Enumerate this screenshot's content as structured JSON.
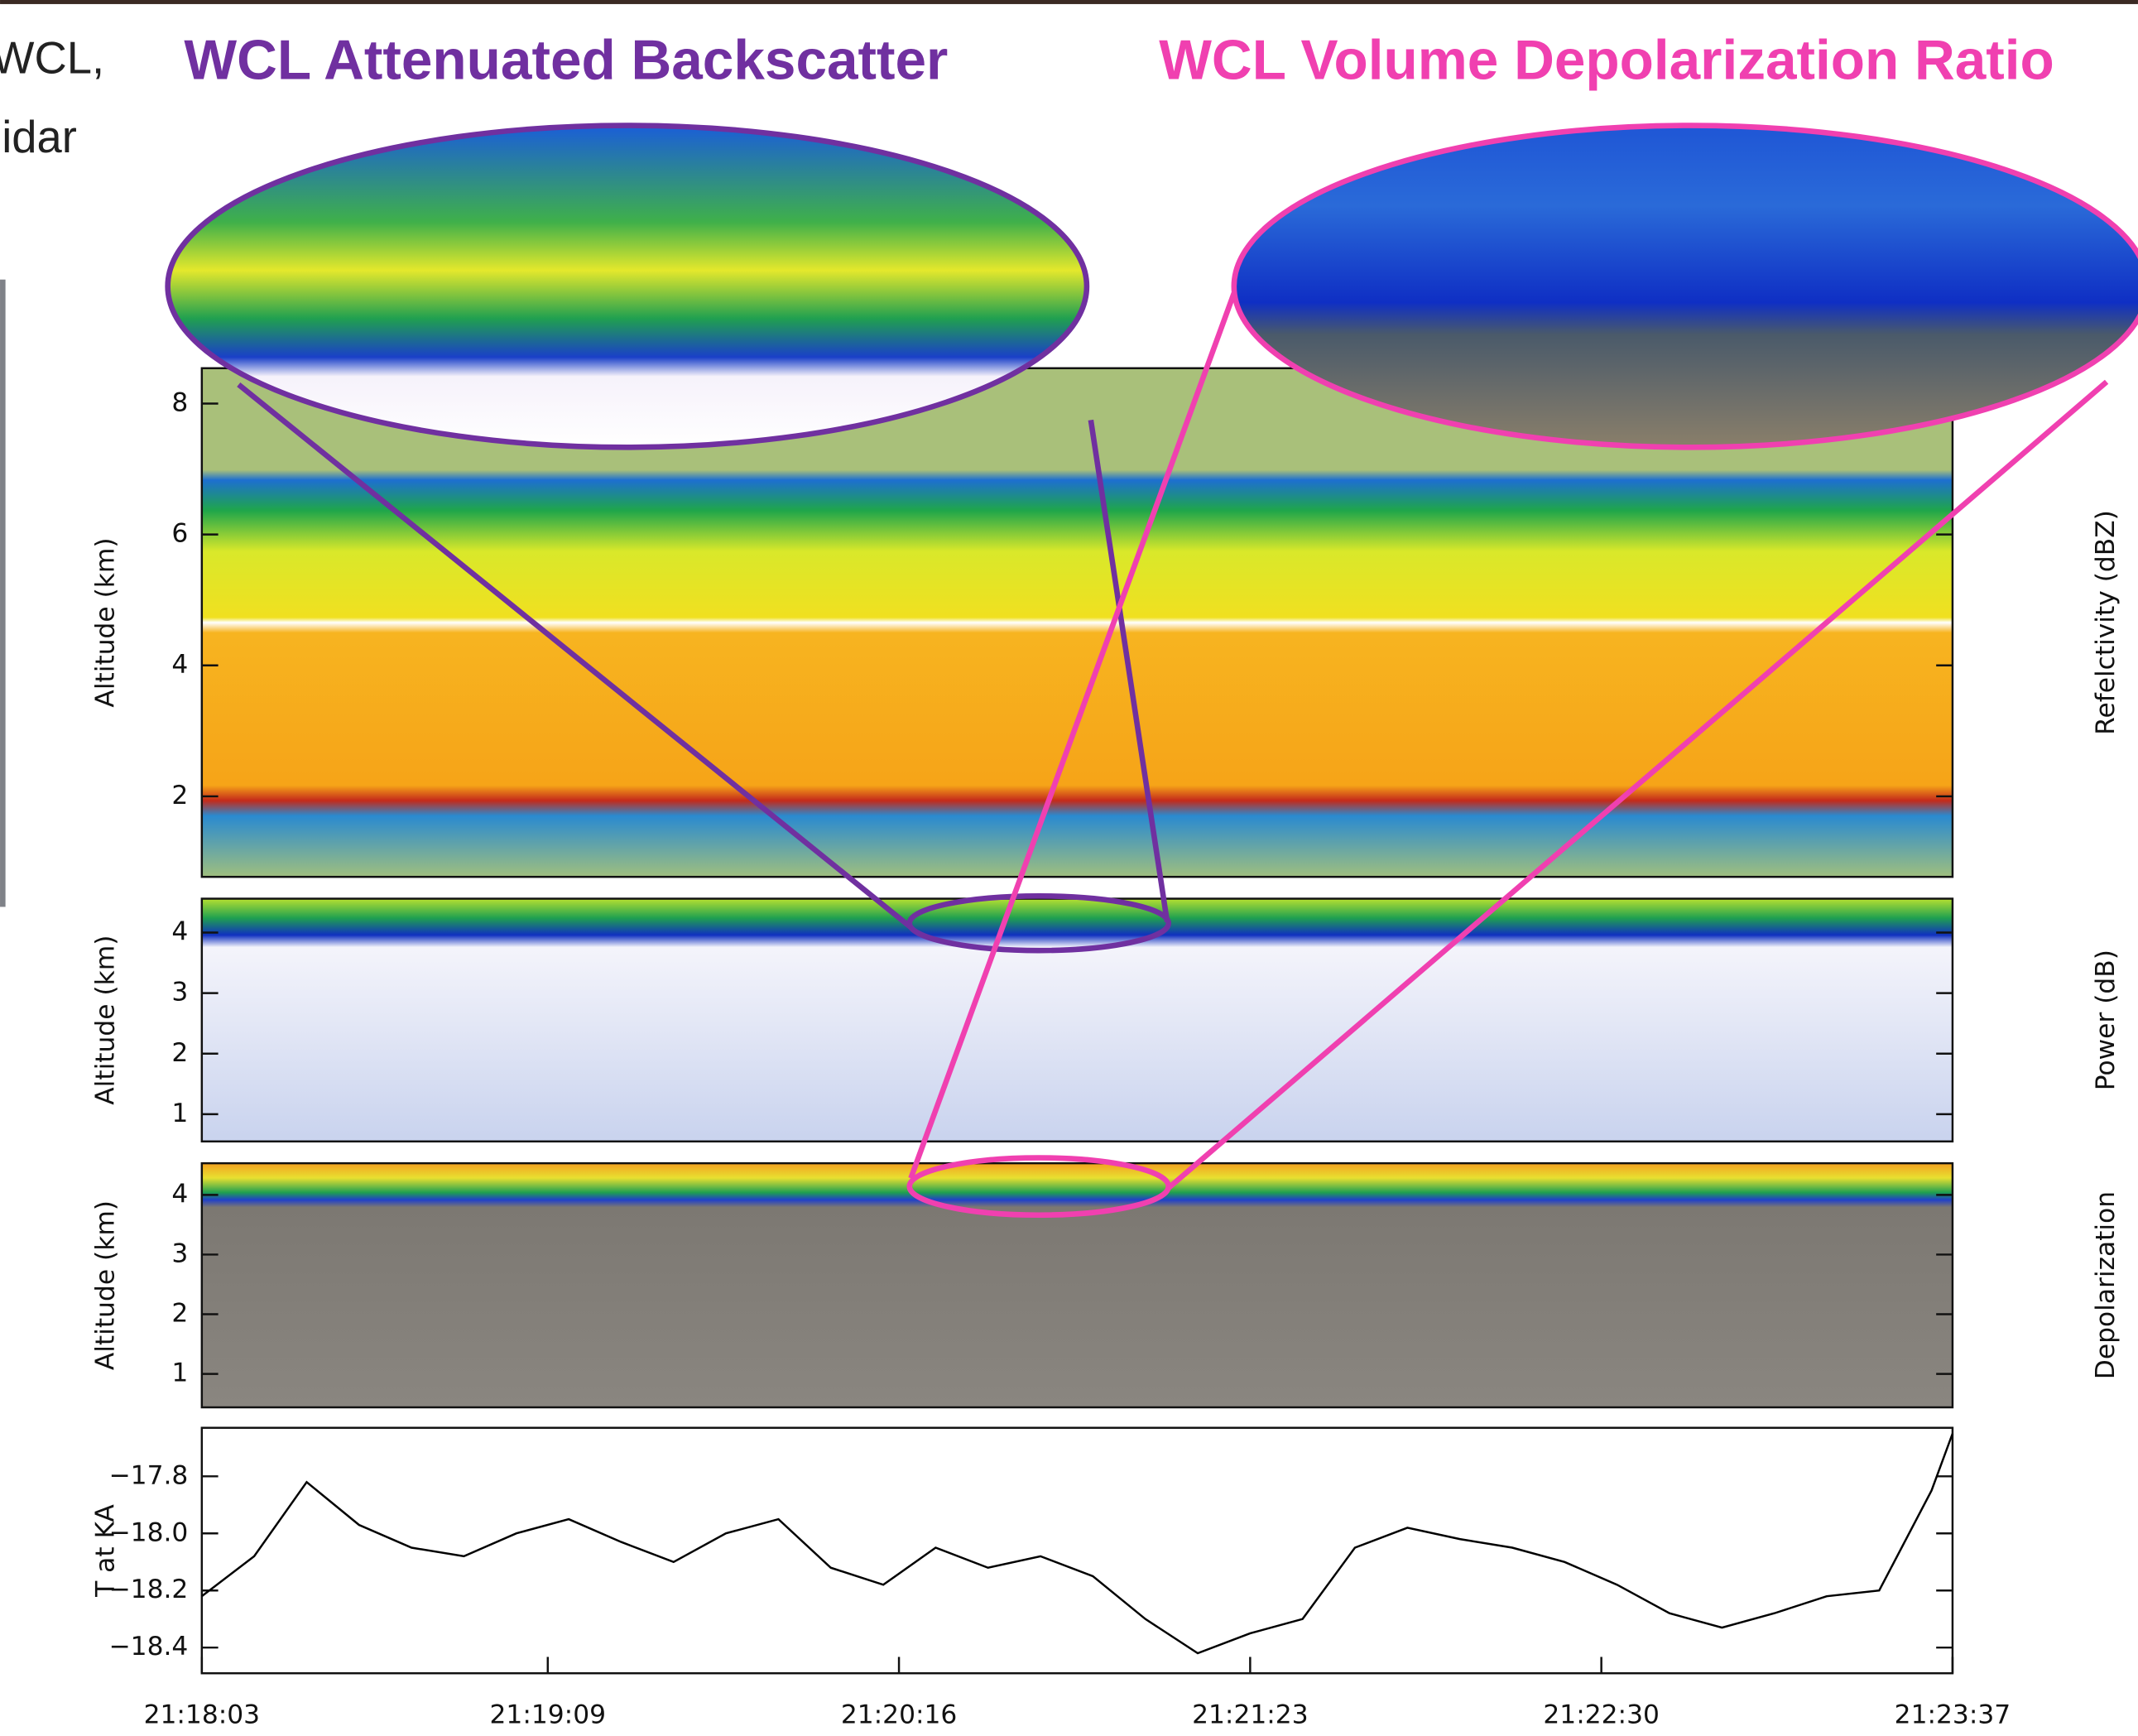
{
  "side_text": [
    "WCL,",
    "lidar"
  ],
  "callouts": [
    "WCL Attenuated Backscatter",
    "WCL Volume Depolarization Ratio"
  ],
  "chart_data": [
    {
      "type": "heatmap",
      "y_label": "Altitude (km)",
      "right_label": "Refelctivity (dBZ)",
      "ylim": [
        0.77,
        8.54
      ],
      "yticks": [
        2,
        4,
        6,
        8
      ]
    },
    {
      "type": "heatmap",
      "y_label": "Altitude (km)",
      "right_label": "Power (dB)",
      "ylim": [
        0.55,
        4.56
      ],
      "yticks": [
        1,
        2,
        3,
        4
      ]
    },
    {
      "type": "heatmap",
      "y_label": "Altitude (km)",
      "right_label": "Depolarization",
      "ylim": [
        0.44,
        4.53
      ],
      "yticks": [
        1,
        2,
        3,
        4
      ]
    },
    {
      "type": "line",
      "y_label": "T at KA",
      "color": "#000000",
      "xlim": [
        "21:18:03",
        "21:23:37"
      ],
      "xticks": [
        "21:18:03",
        "21:19:09",
        "21:20:16",
        "21:21:23",
        "21:22:30",
        "21:23:37"
      ],
      "ylim": [
        -18.49,
        -17.63
      ],
      "yticks": [
        {
          "value": -17.8,
          "label": "−17.8"
        },
        {
          "value": -18.0,
          "label": "−18.0"
        },
        {
          "value": -18.2,
          "label": "−18.2"
        },
        {
          "value": -18.4,
          "label": "−18.4"
        }
      ],
      "x": [
        "21:18:03",
        "21:18:13",
        "21:18:23",
        "21:18:33",
        "21:18:43",
        "21:18:53",
        "21:19:03",
        "21:19:13",
        "21:19:23",
        "21:19:33",
        "21:19:43",
        "21:19:53",
        "21:20:03",
        "21:20:13",
        "21:20:23",
        "21:20:33",
        "21:20:43",
        "21:20:53",
        "21:21:03",
        "21:21:13",
        "21:21:23",
        "21:21:33",
        "21:21:43",
        "21:21:53",
        "21:22:03",
        "21:22:13",
        "21:22:23",
        "21:22:33",
        "21:22:43",
        "21:22:53",
        "21:23:03",
        "21:23:13",
        "21:23:23",
        "21:23:33",
        "21:23:37"
      ],
      "values": [
        -18.22,
        -18.08,
        -17.82,
        -17.97,
        -18.05,
        -18.08,
        -18.0,
        -17.95,
        -18.03,
        -18.1,
        -18.0,
        -17.95,
        -18.12,
        -18.18,
        -18.05,
        -18.12,
        -18.08,
        -18.15,
        -18.3,
        -18.42,
        -18.35,
        -18.3,
        -18.05,
        -17.98,
        -18.02,
        -18.05,
        -18.1,
        -18.18,
        -18.28,
        -18.33,
        -18.28,
        -18.22,
        -18.2,
        -17.85,
        -17.65
      ]
    }
  ]
}
